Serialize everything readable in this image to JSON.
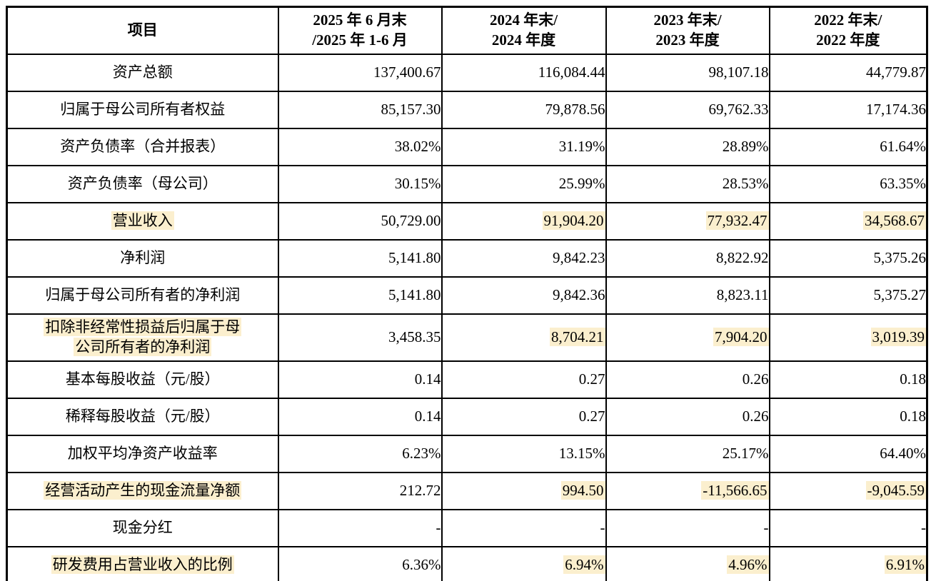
{
  "table": {
    "highlight_color": "#fbefce",
    "header": {
      "item_label": "项目",
      "period_columns": [
        {
          "line1": "2025 年 6 月末",
          "line2": "/2025 年 1-6 月"
        },
        {
          "line1": "2024 年末/",
          "line2": "2024 年度"
        },
        {
          "line1": "2023 年末/",
          "line2": "2023 年度"
        },
        {
          "line1": "2022 年末/",
          "line2": "2022 年度"
        }
      ]
    },
    "rows": [
      {
        "label": "资产总额",
        "values": [
          "137,400.67",
          "116,084.44",
          "98,107.18",
          "44,779.87"
        ],
        "label_highlight": false,
        "value_highlights": [
          false,
          false,
          false,
          false
        ],
        "tall": false
      },
      {
        "label": "归属于母公司所有者权益",
        "values": [
          "85,157.30",
          "79,878.56",
          "69,762.33",
          "17,174.36"
        ],
        "label_highlight": false,
        "value_highlights": [
          false,
          false,
          false,
          false
        ],
        "tall": false
      },
      {
        "label": "资产负债率（合并报表）",
        "values": [
          "38.02%",
          "31.19%",
          "28.89%",
          "61.64%"
        ],
        "label_highlight": false,
        "value_highlights": [
          false,
          false,
          false,
          false
        ],
        "tall": false
      },
      {
        "label": "资产负债率（母公司）",
        "values": [
          "30.15%",
          "25.99%",
          "28.53%",
          "63.35%"
        ],
        "label_highlight": false,
        "value_highlights": [
          false,
          false,
          false,
          false
        ],
        "tall": false
      },
      {
        "label": "营业收入",
        "values": [
          "50,729.00",
          "91,904.20",
          "77,932.47",
          "34,568.67"
        ],
        "label_highlight": true,
        "value_highlights": [
          false,
          true,
          true,
          true
        ],
        "tall": false
      },
      {
        "label": "净利润",
        "values": [
          "5,141.80",
          "9,842.23",
          "8,822.92",
          "5,375.26"
        ],
        "label_highlight": false,
        "value_highlights": [
          false,
          false,
          false,
          false
        ],
        "tall": false
      },
      {
        "label": "归属于母公司所有者的净利润",
        "values": [
          "5,141.80",
          "9,842.36",
          "8,823.11",
          "5,375.27"
        ],
        "label_highlight": false,
        "value_highlights": [
          false,
          false,
          false,
          false
        ],
        "tall": false
      },
      {
        "label": "扣除非经常性损益后归属于母\n公司所有者的净利润",
        "values": [
          "3,458.35",
          "8,704.21",
          "7,904.20",
          "3,019.39"
        ],
        "label_highlight": true,
        "value_highlights": [
          false,
          true,
          true,
          true
        ],
        "tall": true
      },
      {
        "label": "基本每股收益（元/股）",
        "values": [
          "0.14",
          "0.27",
          "0.26",
          "0.18"
        ],
        "label_highlight": false,
        "value_highlights": [
          false,
          false,
          false,
          false
        ],
        "tall": false
      },
      {
        "label": "稀释每股收益（元/股）",
        "values": [
          "0.14",
          "0.27",
          "0.26",
          "0.18"
        ],
        "label_highlight": false,
        "value_highlights": [
          false,
          false,
          false,
          false
        ],
        "tall": false
      },
      {
        "label": "加权平均净资产收益率",
        "values": [
          "6.23%",
          "13.15%",
          "25.17%",
          "64.40%"
        ],
        "label_highlight": false,
        "value_highlights": [
          false,
          false,
          false,
          false
        ],
        "tall": false
      },
      {
        "label": "经营活动产生的现金流量净额",
        "values": [
          "212.72",
          "994.50",
          "-11,566.65",
          "-9,045.59"
        ],
        "label_highlight": true,
        "value_highlights": [
          false,
          true,
          true,
          true
        ],
        "tall": false
      },
      {
        "label": "现金分红",
        "values": [
          "-",
          "-",
          "-",
          "-"
        ],
        "label_highlight": false,
        "value_highlights": [
          false,
          false,
          false,
          false
        ],
        "tall": false
      },
      {
        "label": "研发费用占营业收入的比例",
        "values": [
          "6.36%",
          "6.94%",
          "4.96%",
          "6.91%"
        ],
        "label_highlight": true,
        "value_highlights": [
          false,
          true,
          true,
          true
        ],
        "tall": false
      }
    ]
  }
}
